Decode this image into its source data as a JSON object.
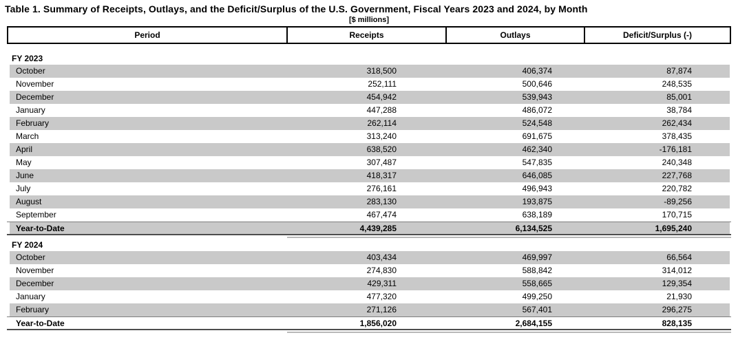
{
  "title": "Table 1. Summary of Receipts, Outlays, and the Deficit/Surplus of the U.S. Government, Fiscal Years 2023 and 2024, by Month",
  "subtitle": "[$ millions]",
  "colors": {
    "row_stripe": "#c9c9c9"
  },
  "table": {
    "columns": [
      "Period",
      "Receipts",
      "Outlays",
      "Deficit/Surplus (-)"
    ],
    "sections": [
      {
        "label": "FY 2023",
        "rows": [
          {
            "period": "October",
            "receipts": "318,500",
            "outlays": "406,374",
            "deficit": "87,874"
          },
          {
            "period": "November",
            "receipts": "252,111",
            "outlays": "500,646",
            "deficit": "248,535"
          },
          {
            "period": "December",
            "receipts": "454,942",
            "outlays": "539,943",
            "deficit": "85,001"
          },
          {
            "period": "January",
            "receipts": "447,288",
            "outlays": "486,072",
            "deficit": "38,784"
          },
          {
            "period": "February",
            "receipts": "262,114",
            "outlays": "524,548",
            "deficit": "262,434"
          },
          {
            "period": "March",
            "receipts": "313,240",
            "outlays": "691,675",
            "deficit": "378,435"
          },
          {
            "period": "April",
            "receipts": "638,520",
            "outlays": "462,340",
            "deficit": "-176,181"
          },
          {
            "period": "May",
            "receipts": "307,487",
            "outlays": "547,835",
            "deficit": "240,348"
          },
          {
            "period": "June",
            "receipts": "418,317",
            "outlays": "646,085",
            "deficit": "227,768"
          },
          {
            "period": "July",
            "receipts": "276,161",
            "outlays": "496,943",
            "deficit": "220,782"
          },
          {
            "period": "August",
            "receipts": "283,130",
            "outlays": "193,875",
            "deficit": "-89,256"
          },
          {
            "period": "September",
            "receipts": "467,474",
            "outlays": "638,189",
            "deficit": "170,715"
          }
        ],
        "total": {
          "period": "Year-to-Date",
          "receipts": "4,439,285",
          "outlays": "6,134,525",
          "deficit": "1,695,240"
        }
      },
      {
        "label": "FY 2024",
        "rows": [
          {
            "period": "October",
            "receipts": "403,434",
            "outlays": "469,997",
            "deficit": "66,564"
          },
          {
            "period": "November",
            "receipts": "274,830",
            "outlays": "588,842",
            "deficit": "314,012"
          },
          {
            "period": "December",
            "receipts": "429,311",
            "outlays": "558,665",
            "deficit": "129,354"
          },
          {
            "period": "January",
            "receipts": "477,320",
            "outlays": "499,250",
            "deficit": "21,930"
          },
          {
            "period": "February",
            "receipts": "271,126",
            "outlays": "567,401",
            "deficit": "296,275"
          }
        ],
        "total": {
          "period": "Year-to-Date",
          "receipts": "1,856,020",
          "outlays": "2,684,155",
          "deficit": "828,135"
        }
      }
    ]
  }
}
